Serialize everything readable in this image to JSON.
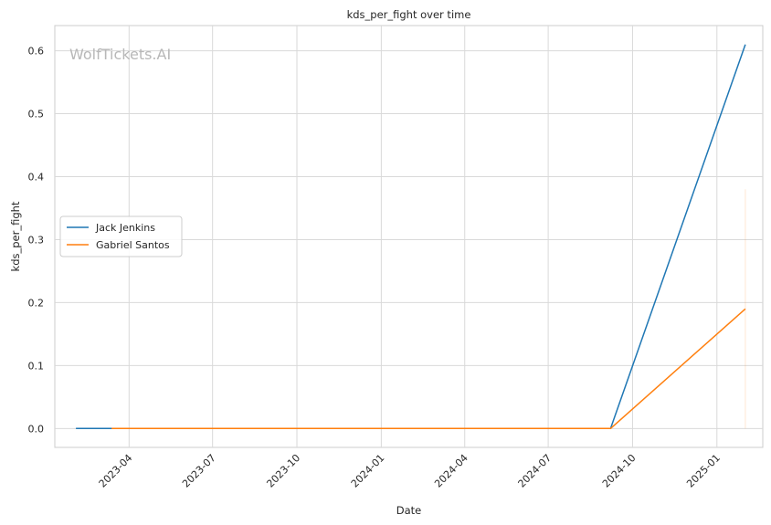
{
  "chart_data": {
    "type": "line",
    "title": "kds_per_fight over time",
    "xlabel": "Date",
    "ylabel": "kds_per_fight",
    "watermark": "WolfTickets.AI",
    "grid": true,
    "legend_position": "center-left",
    "xlim": [
      "2023-01-10",
      "2025-02-20"
    ],
    "ylim": [
      -0.03,
      0.64
    ],
    "x_ticks": [
      "2023-04-01",
      "2023-07-01",
      "2023-10-01",
      "2024-01-01",
      "2024-04-01",
      "2024-07-01",
      "2024-10-01",
      "2025-01-01"
    ],
    "x_tick_labels": [
      "2023-04",
      "2023-07",
      "2023-10",
      "2024-01",
      "2024-04",
      "2024-07",
      "2024-10",
      "2025-01"
    ],
    "y_ticks": [
      0.0,
      0.1,
      0.2,
      0.3,
      0.4,
      0.5,
      0.6
    ],
    "y_tick_labels": [
      "0.0",
      "0.1",
      "0.2",
      "0.3",
      "0.4",
      "0.5",
      "0.6"
    ],
    "colors": {
      "Jack Jenkins": "#1f77b4",
      "Gabriel Santos": "#ff7f0e"
    },
    "series": [
      {
        "name": "Jack Jenkins",
        "color": "#1f77b4",
        "points": [
          {
            "x": "2023-02-02",
            "y": 0.0
          },
          {
            "x": "2023-09-01",
            "y": 0.0
          },
          {
            "x": "2024-09-07",
            "y": 0.0
          },
          {
            "x": "2025-02-01",
            "y": 0.61
          }
        ]
      },
      {
        "name": "Gabriel Santos",
        "color": "#ff7f0e",
        "points": [
          {
            "x": "2023-03-13",
            "y": 0.0
          },
          {
            "x": "2024-09-07",
            "y": 0.0
          },
          {
            "x": "2025-02-01",
            "y": 0.19
          }
        ],
        "error_band": {
          "x": "2025-02-01",
          "low": 0.0,
          "high": 0.38
        }
      }
    ]
  }
}
